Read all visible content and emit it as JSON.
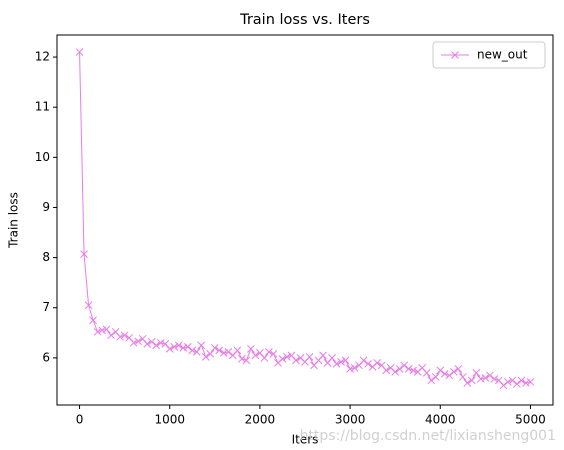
{
  "chart_data": {
    "type": "line",
    "title": "Train loss  vs. Iters",
    "xlabel": "Iters",
    "ylabel": "Train loss",
    "x": [
      0,
      50,
      100,
      150,
      200,
      250,
      300,
      350,
      400,
      450,
      500,
      550,
      600,
      650,
      700,
      750,
      800,
      850,
      900,
      950,
      1000,
      1050,
      1100,
      1150,
      1200,
      1250,
      1300,
      1350,
      1400,
      1450,
      1500,
      1550,
      1600,
      1650,
      1700,
      1750,
      1800,
      1850,
      1900,
      1950,
      2000,
      2050,
      2100,
      2150,
      2200,
      2250,
      2300,
      2350,
      2400,
      2450,
      2500,
      2550,
      2600,
      2650,
      2700,
      2750,
      2800,
      2850,
      2900,
      2950,
      3000,
      3050,
      3100,
      3150,
      3200,
      3250,
      3300,
      3350,
      3400,
      3450,
      3500,
      3550,
      3600,
      3650,
      3700,
      3750,
      3800,
      3850,
      3900,
      3950,
      4000,
      4050,
      4100,
      4150,
      4200,
      4250,
      4300,
      4350,
      4400,
      4450,
      4500,
      4550,
      4600,
      4650,
      4700,
      4750,
      4800,
      4850,
      4900,
      4950,
      5000
    ],
    "series": [
      {
        "name": "new_out",
        "color": "#e87de8",
        "marker": "x",
        "values": [
          12.1,
          8.07,
          7.05,
          6.75,
          6.52,
          6.55,
          6.57,
          6.45,
          6.52,
          6.42,
          6.45,
          6.4,
          6.3,
          6.33,
          6.38,
          6.28,
          6.32,
          6.25,
          6.3,
          6.28,
          6.18,
          6.22,
          6.25,
          6.2,
          6.22,
          6.15,
          6.12,
          6.25,
          6.02,
          6.08,
          6.2,
          6.15,
          6.1,
          6.12,
          6.05,
          6.15,
          5.98,
          5.95,
          6.18,
          6.05,
          6.1,
          6.0,
          6.12,
          6.08,
          5.9,
          5.98,
          6.02,
          6.05,
          5.95,
          6.0,
          5.92,
          6.02,
          5.85,
          5.95,
          6.05,
          5.9,
          6.0,
          5.88,
          5.92,
          5.95,
          5.78,
          5.8,
          5.85,
          5.95,
          5.88,
          5.82,
          5.9,
          5.85,
          5.75,
          5.8,
          5.72,
          5.78,
          5.85,
          5.78,
          5.75,
          5.72,
          5.8,
          5.7,
          5.55,
          5.62,
          5.75,
          5.68,
          5.65,
          5.72,
          5.78,
          5.62,
          5.5,
          5.55,
          5.7,
          5.58,
          5.6,
          5.65,
          5.58,
          5.55,
          5.45,
          5.52,
          5.55,
          5.48,
          5.55,
          5.5,
          5.52
        ]
      }
    ],
    "xlim": [
      -250,
      5250
    ],
    "ylim": [
      5.06,
      12.44
    ],
    "xticks": [
      0,
      1000,
      2000,
      3000,
      4000,
      5000
    ],
    "yticks": [
      6,
      7,
      8,
      9,
      10,
      11,
      12
    ],
    "legend": "upper right"
  },
  "watermark": "https://blog.csdn.net/lixiansheng001"
}
